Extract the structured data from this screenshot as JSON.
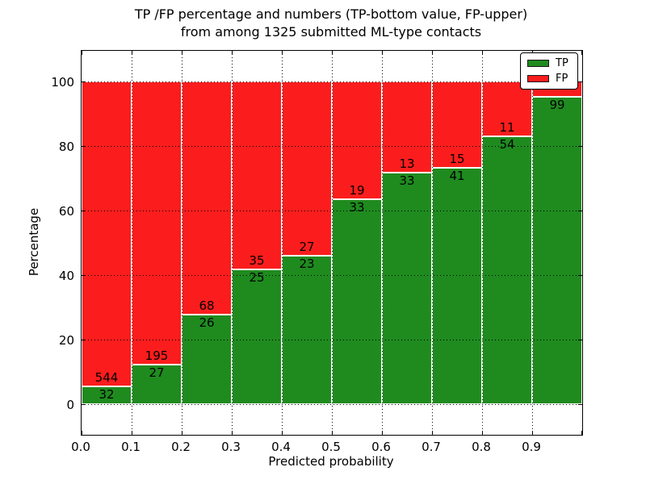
{
  "chart_data": {
    "type": "bar",
    "stacked": true,
    "title_line1": "TP /FP percentage and numbers (TP-bottom value, FP-upper)",
    "title_line2": "from among 1325 submitted ML-type contacts",
    "total_contacts": 1325,
    "xlabel": "Predicted probability",
    "ylabel": "Percentage",
    "xlim": [
      0.0,
      1.0
    ],
    "ylim_display": [
      -9.5,
      109.5
    ],
    "grid": "dotted",
    "x_tick_labels": [
      "0.0",
      "0.1",
      "0.2",
      "0.3",
      "0.4",
      "0.5",
      "0.6",
      "0.7",
      "0.8",
      "0.9"
    ],
    "x_tick_values": [
      0.0,
      0.1,
      0.2,
      0.3,
      0.4,
      0.5,
      0.6,
      0.7,
      0.8,
      0.9
    ],
    "y_tick_labels": [
      "0",
      "20",
      "40",
      "60",
      "80",
      "100"
    ],
    "y_tick_values": [
      0,
      20,
      40,
      60,
      80,
      100
    ],
    "colors": {
      "tp": "#1f8b1f",
      "fp": "#fb1d1d",
      "bar_edge": "#ffffff",
      "grid": "#000000"
    },
    "legend": {
      "position": "upper-right",
      "items": [
        {
          "label": "TP",
          "color": "#1f8b1f"
        },
        {
          "label": "FP",
          "color": "#fb1d1d"
        }
      ]
    },
    "bins": [
      {
        "x_start": 0.0,
        "x_end": 0.1,
        "tp_count": 32,
        "fp_count": 544,
        "tp_percent": 5.56
      },
      {
        "x_start": 0.1,
        "x_end": 0.2,
        "tp_count": 27,
        "fp_count": 195,
        "tp_percent": 12.16
      },
      {
        "x_start": 0.2,
        "x_end": 0.3,
        "tp_count": 26,
        "fp_count": 68,
        "tp_percent": 27.66
      },
      {
        "x_start": 0.3,
        "x_end": 0.4,
        "tp_count": 25,
        "fp_count": 35,
        "tp_percent": 41.67
      },
      {
        "x_start": 0.4,
        "x_end": 0.5,
        "tp_count": 23,
        "fp_count": 27,
        "tp_percent": 46.0
      },
      {
        "x_start": 0.5,
        "x_end": 0.6,
        "tp_count": 33,
        "fp_count": 19,
        "tp_percent": 63.46
      },
      {
        "x_start": 0.6,
        "x_end": 0.7,
        "tp_count": 33,
        "fp_count": 13,
        "tp_percent": 71.74
      },
      {
        "x_start": 0.7,
        "x_end": 0.8,
        "tp_count": 41,
        "fp_count": 15,
        "tp_percent": 73.21
      },
      {
        "x_start": 0.8,
        "x_end": 0.9,
        "tp_count": 54,
        "fp_count": 11,
        "tp_percent": 83.08
      },
      {
        "x_start": 0.9,
        "x_end": 1.0,
        "tp_count": 99,
        "fp_count": null,
        "tp_percent": 95.19
      }
    ]
  }
}
